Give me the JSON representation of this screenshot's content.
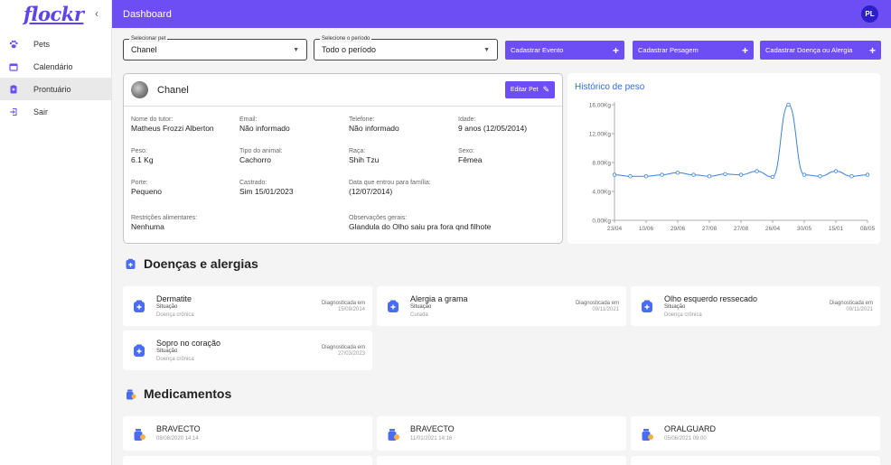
{
  "sidebar": {
    "logo": "flockr",
    "items": [
      {
        "label": "Pets",
        "icon": "paw-icon"
      },
      {
        "label": "Calendário",
        "icon": "calendar-icon"
      },
      {
        "label": "Prontuário",
        "icon": "medical-record-icon"
      },
      {
        "label": "Sair",
        "icon": "exit-icon"
      }
    ],
    "active_item": "Prontuário"
  },
  "header": {
    "title": "Dashboard",
    "avatar_initials": "PL"
  },
  "filters": {
    "pet": {
      "label": "Selecionar pet",
      "value": "Chanel"
    },
    "period": {
      "label": "Selecione o período",
      "value": "Todo o período"
    }
  },
  "actions": [
    {
      "label": "Cadastrar Evento"
    },
    {
      "label": "Cadastrar Pesagem"
    },
    {
      "label": "Cadastrar Doença ou Alergia"
    }
  ],
  "pet": {
    "name": "Chanel",
    "edit_label": "Editar Pet",
    "fields": [
      {
        "k": "Nome do tutor:",
        "v": "Matheus Frozzi Alberton"
      },
      {
        "k": "Email:",
        "v": "Não informado"
      },
      {
        "k": "Telefone:",
        "v": "Não informado"
      },
      {
        "k": "Idade:",
        "v": "9 anos (12/05/2014)"
      },
      {
        "k": "Peso:",
        "v": "6.1 Kg"
      },
      {
        "k": "Tipo do animal:",
        "v": "Cachorro"
      },
      {
        "k": "Raça:",
        "v": "Shih Tzu"
      },
      {
        "k": "Sexo:",
        "v": "Fêmea"
      },
      {
        "k": "Porte:",
        "v": "Pequeno"
      },
      {
        "k": "Castrado:",
        "v": "Sim 15/01/2023"
      },
      {
        "k": "Data que entrou para família:",
        "v": "(12/07/2014)"
      },
      {
        "k": "Restrições alimentares:",
        "v": "Nenhuma"
      },
      {
        "k": "Observações gerais:",
        "v": "Glandula do Olho saiu pra fora qnd filhote"
      }
    ]
  },
  "chart_data": {
    "type": "line",
    "title": "Histórico de peso",
    "y_ticks": [
      "0,00Kg",
      "4,00Kg",
      "8,00Kg",
      "12,00Kg",
      "16,00Kg"
    ],
    "ylim": [
      0,
      16
    ],
    "x_ticks": [
      "23/04",
      "10/06",
      "29/06",
      "27/08",
      "27/08",
      "26/04",
      "30/05",
      "15/01",
      "08/05"
    ],
    "values": [
      6.3,
      6.1,
      6.1,
      6.3,
      6.6,
      6.3,
      6.1,
      6.4,
      6.3,
      6.8,
      6.0,
      16.0,
      6.3,
      6.1,
      6.8,
      6.1,
      6.3
    ],
    "color": "#3b82d6"
  },
  "diseases": {
    "title": "Doenças e alergias",
    "status_label": "Situação",
    "diag_label": "Diagnosticada em",
    "items": [
      {
        "name": "Dermatite",
        "status": "Doença crônica",
        "date": "15/09/2014"
      },
      {
        "name": "Alergia a grama",
        "status": "Curada",
        "date": "09/11/2021"
      },
      {
        "name": "Olho esquerdo ressecado",
        "status": "Doença crônica",
        "date": "09/11/2021"
      },
      {
        "name": "Sopro no coração",
        "status": "Doença crônica",
        "date": "27/03/2023"
      }
    ]
  },
  "medications": {
    "title": "Medicamentos",
    "items": [
      {
        "name": "BRAVECTO",
        "date": "08/08/2020 14:14"
      },
      {
        "name": "BRAVECTO",
        "date": "11/01/2021 14:16"
      },
      {
        "name": "ORALGUARD",
        "date": "05/06/2021 09:00"
      }
    ]
  },
  "colors": {
    "primary": "#6d4ef5",
    "avatar": "#2c1fc4",
    "chart": "#3b82d6"
  }
}
